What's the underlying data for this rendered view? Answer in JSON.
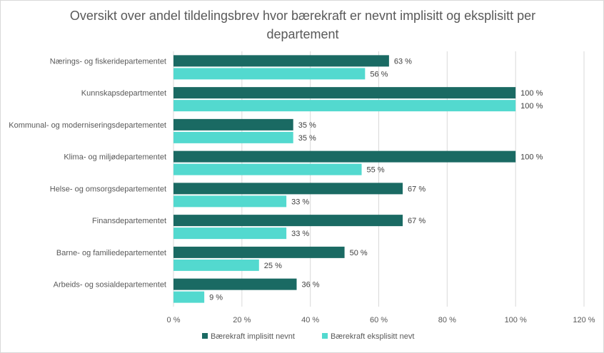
{
  "chart_data": {
    "type": "bar",
    "orientation": "horizontal",
    "title": "Oversikt over andel tildelingsbrev hvor bærekraft er nevnt implisitt og eksplisitt per departement",
    "categories": [
      "Nærings- og fiskeridepartementet",
      "Kunnskapsdepartmentet",
      "Kommunal- og moderniseringsdepartementet",
      "Klima- og miljødepartementet",
      "Helse- og omsorgsdepartementet",
      "Finansdepartementet",
      "Barne- og familiedepartementet",
      "Arbeids- og sosialdepartementet"
    ],
    "series": [
      {
        "name": "Bærekraft implisitt nevnt",
        "color": "#1a6a63",
        "values": [
          63,
          100,
          35,
          100,
          67,
          67,
          50,
          36
        ],
        "labels": [
          "63 %",
          "100 %",
          "35 %",
          "100 %",
          "67 %",
          "67 %",
          "50 %",
          "36 %"
        ]
      },
      {
        "name": "Bærekraft eksplisitt nevt",
        "color": "#53d9cf",
        "values": [
          56,
          100,
          35,
          55,
          33,
          33,
          25,
          9
        ],
        "labels": [
          "56 %",
          "100 %",
          "35 %",
          "55 %",
          "33 %",
          "33 %",
          "25 %",
          "9 %"
        ]
      }
    ],
    "xlim": [
      0,
      120
    ],
    "xticks": [
      0,
      20,
      40,
      60,
      80,
      100,
      120
    ],
    "xtick_labels": [
      "0 %",
      "20 %",
      "40 %",
      "60 %",
      "80 %",
      "100 %",
      "120 %"
    ],
    "grid": true,
    "gridline_color": "#d9d9d9",
    "legend_position": "bottom"
  }
}
